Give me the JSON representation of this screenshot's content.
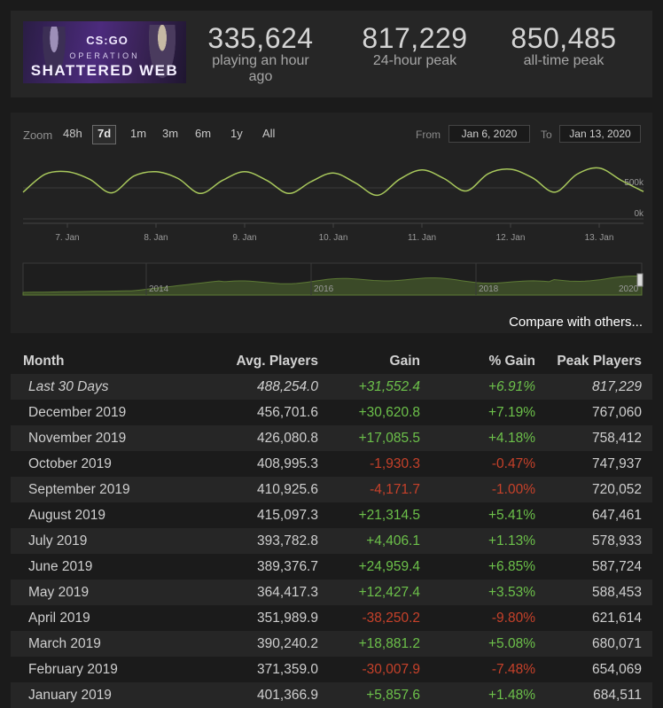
{
  "header": {
    "banner": {
      "logo": "CS:GO",
      "line1": "OPERATION",
      "line2": "SHATTERED WEB"
    },
    "stats": [
      {
        "value": "335,624",
        "label": "playing an hour ago"
      },
      {
        "value": "817,229",
        "label": "24-hour peak"
      },
      {
        "value": "850,485",
        "label": "all-time peak"
      }
    ]
  },
  "chart": {
    "zoom_label": "Zoom",
    "zoom_options": [
      "48h",
      "7d",
      "1m",
      "3m",
      "6m",
      "1y",
      "All"
    ],
    "zoom_selected": "7d",
    "from_label": "From",
    "from_value": "Jan 6, 2020",
    "to_label": "To",
    "to_value": "Jan 13, 2020",
    "compare_link": "Compare with others...",
    "accent": "#a8c85c",
    "navigator_years": [
      "2014",
      "2016",
      "2018",
      "2020"
    ]
  },
  "chart_data": {
    "type": "line",
    "x": [
      "6. Jan 12h",
      "6. Jan 18h",
      "7. Jan 0h",
      "7. Jan 6h",
      "7. Jan 12h",
      "7. Jan 18h",
      "8. Jan 0h",
      "8. Jan 6h",
      "8. Jan 12h",
      "8. Jan 18h",
      "9. Jan 0h",
      "9. Jan 6h",
      "9. Jan 12h",
      "9. Jan 18h",
      "10. Jan 0h",
      "10. Jan 6h",
      "10. Jan 12h",
      "10. Jan 18h",
      "11. Jan 0h",
      "11. Jan 6h",
      "11. Jan 12h",
      "11. Jan 18h",
      "12. Jan 0h",
      "12. Jan 6h",
      "12. Jan 12h",
      "12. Jan 18h",
      "13. Jan 0h",
      "13. Jan 6h",
      "13. Jan 12h"
    ],
    "series": [
      {
        "values": [
          430000,
          720000,
          760000,
          640000,
          420000,
          690000,
          760000,
          650000,
          410000,
          620000,
          760000,
          620000,
          410000,
          600000,
          740000,
          580000,
          380000,
          640000,
          790000,
          650000,
          450000,
          730000,
          800000,
          660000,
          430000,
          720000,
          820000,
          620000,
          440000
        ]
      }
    ],
    "x_ticks": [
      "7. Jan",
      "8. Jan",
      "9. Jan",
      "10. Jan",
      "11. Jan",
      "12. Jan",
      "13. Jan"
    ],
    "y_ticks": [
      "0k",
      "500k"
    ],
    "ylim": [
      0,
      1000000
    ],
    "grid": true
  },
  "table": {
    "headers": [
      "Month",
      "Avg. Players",
      "Gain",
      "% Gain",
      "Peak Players"
    ],
    "rows": [
      {
        "month": "Last 30 Days",
        "avg": "488,254.0",
        "gain": "+31,552.4",
        "pct": "+6.91%",
        "peak": "817,229",
        "sign": "pos"
      },
      {
        "month": "December 2019",
        "avg": "456,701.6",
        "gain": "+30,620.8",
        "pct": "+7.19%",
        "peak": "767,060",
        "sign": "pos"
      },
      {
        "month": "November 2019",
        "avg": "426,080.8",
        "gain": "+17,085.5",
        "pct": "+4.18%",
        "peak": "758,412",
        "sign": "pos"
      },
      {
        "month": "October 2019",
        "avg": "408,995.3",
        "gain": "-1,930.3",
        "pct": "-0.47%",
        "peak": "747,937",
        "sign": "neg"
      },
      {
        "month": "September 2019",
        "avg": "410,925.6",
        "gain": "-4,171.7",
        "pct": "-1.00%",
        "peak": "720,052",
        "sign": "neg"
      },
      {
        "month": "August 2019",
        "avg": "415,097.3",
        "gain": "+21,314.5",
        "pct": "+5.41%",
        "peak": "647,461",
        "sign": "pos"
      },
      {
        "month": "July 2019",
        "avg": "393,782.8",
        "gain": "+4,406.1",
        "pct": "+1.13%",
        "peak": "578,933",
        "sign": "pos"
      },
      {
        "month": "June 2019",
        "avg": "389,376.7",
        "gain": "+24,959.4",
        "pct": "+6.85%",
        "peak": "587,724",
        "sign": "pos"
      },
      {
        "month": "May 2019",
        "avg": "364,417.3",
        "gain": "+12,427.4",
        "pct": "+3.53%",
        "peak": "588,453",
        "sign": "pos"
      },
      {
        "month": "April 2019",
        "avg": "351,989.9",
        "gain": "-38,250.2",
        "pct": "-9.80%",
        "peak": "621,614",
        "sign": "neg"
      },
      {
        "month": "March 2019",
        "avg": "390,240.2",
        "gain": "+18,881.2",
        "pct": "+5.08%",
        "peak": "680,071",
        "sign": "pos"
      },
      {
        "month": "February 2019",
        "avg": "371,359.0",
        "gain": "-30,007.9",
        "pct": "-7.48%",
        "peak": "654,069",
        "sign": "neg"
      },
      {
        "month": "January 2019",
        "avg": "401,366.9",
        "gain": "+5,857.6",
        "pct": "+1.48%",
        "peak": "684,511",
        "sign": "pos"
      }
    ]
  }
}
